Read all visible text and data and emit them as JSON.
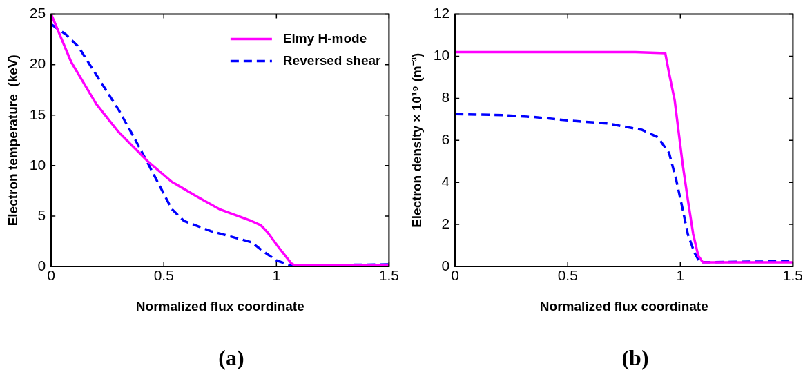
{
  "chart_data": [
    {
      "type": "line",
      "xlabel": "Normalized flux coordinate",
      "ylabel": "Electron temperature  (keV)",
      "xlim": [
        0,
        1.5
      ],
      "ylim": [
        0,
        25
      ],
      "xticks": [
        0,
        0.5,
        1,
        1.5
      ],
      "yticks": [
        0,
        5,
        10,
        15,
        20,
        25
      ],
      "legend": "top right",
      "annotations": [
        "(a)"
      ],
      "series": [
        {
          "name": "Elmy H-mode",
          "color": "#ff00ff",
          "line_style": "solid",
          "x": [
            0,
            0.088,
            0.2,
            0.3,
            0.43,
            0.535,
            0.65,
            0.75,
            0.89,
            0.93,
            0.96,
            1.01,
            1.065,
            1.08,
            1.5
          ],
          "values": [
            25,
            20.3,
            16.1,
            13.3,
            10.4,
            8.4,
            6.9,
            5.65,
            4.5,
            4.1,
            3.4,
            1.9,
            0.33,
            0.12,
            0.12
          ]
        },
        {
          "name": "Reversed shear",
          "color": "#0000ff",
          "line_style": "dashed",
          "x": [
            0,
            0.065,
            0.12,
            0.2,
            0.3,
            0.37,
            0.43,
            0.535,
            0.59,
            0.71,
            0.89,
            0.935,
            1.0,
            1.065,
            1.5
          ],
          "values": [
            24,
            23,
            21.8,
            19.0,
            15.5,
            12.7,
            10.2,
            5.7,
            4.5,
            3.5,
            2.4,
            1.6,
            0.6,
            0.1,
            0.2
          ]
        }
      ]
    },
    {
      "type": "line",
      "xlabel": "Normalized flux coordinate",
      "ylabel": "Electron density × 10¹⁹ (m⁻³)",
      "xlim": [
        0,
        1.5
      ],
      "ylim": [
        0,
        12
      ],
      "xticks": [
        0,
        0.5,
        1,
        1.5
      ],
      "yticks": [
        0,
        2,
        4,
        6,
        8,
        10,
        12
      ],
      "annotations": [
        "(b)"
      ],
      "series": [
        {
          "color": "#ff00ff",
          "line_style": "solid",
          "x": [
            0,
            0.61,
            0.8,
            0.933,
            0.95,
            0.975,
            1.01,
            1.033,
            1.057,
            1.08,
            1.1,
            1.5
          ],
          "values": [
            10.2,
            10.2,
            10.2,
            10.15,
            9.2,
            7.9,
            4.9,
            3.2,
            1.55,
            0.5,
            0.2,
            0.2
          ]
        },
        {
          "color": "#0000ff",
          "line_style": "dashed",
          "x": [
            0,
            0.21,
            0.36,
            0.5,
            0.68,
            0.83,
            0.9,
            0.95,
            0.98,
            1.01,
            1.033,
            1.063,
            1.087,
            1.5
          ],
          "values": [
            7.25,
            7.2,
            7.1,
            6.95,
            6.8,
            6.5,
            6.15,
            5.4,
            4.2,
            2.75,
            1.55,
            0.65,
            0.2,
            0.25
          ]
        }
      ]
    }
  ]
}
